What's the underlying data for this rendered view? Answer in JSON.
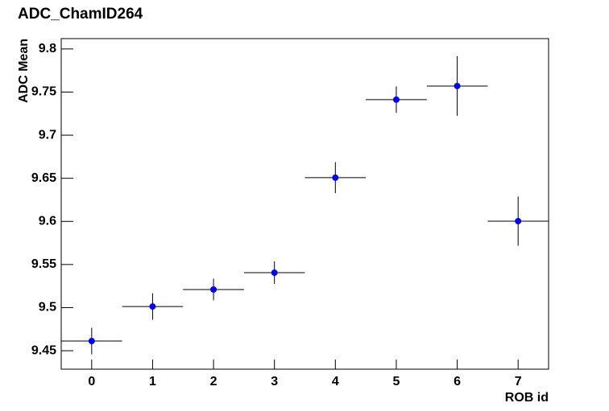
{
  "chart_data": {
    "type": "errorbar",
    "title": "ADC_ChamID264",
    "x_label": "ROB id",
    "y_label": "ADC Mean",
    "x": [
      0,
      1,
      2,
      3,
      4,
      5,
      6,
      7
    ],
    "xerr": [
      0.5,
      0.5,
      0.5,
      0.5,
      0.5,
      0.5,
      0.5,
      0.5
    ],
    "values": [
      9.4612,
      9.5013,
      9.521,
      9.5405,
      9.6507,
      9.7412,
      9.757,
      9.6003
    ],
    "yerr": [
      0.0154,
      0.0154,
      0.0126,
      0.013,
      0.018,
      0.0154,
      0.0345,
      0.0285
    ],
    "color": "#0000ff",
    "xlim": [
      -0.5,
      7.5
    ],
    "xticks": [
      0,
      1,
      2,
      3,
      4,
      5,
      6,
      7
    ],
    "ylim": [
      9.4286,
      9.812
    ],
    "yticks": [
      9.45,
      9.5,
      9.55,
      9.6,
      9.65,
      9.7,
      9.75,
      9.8
    ]
  }
}
